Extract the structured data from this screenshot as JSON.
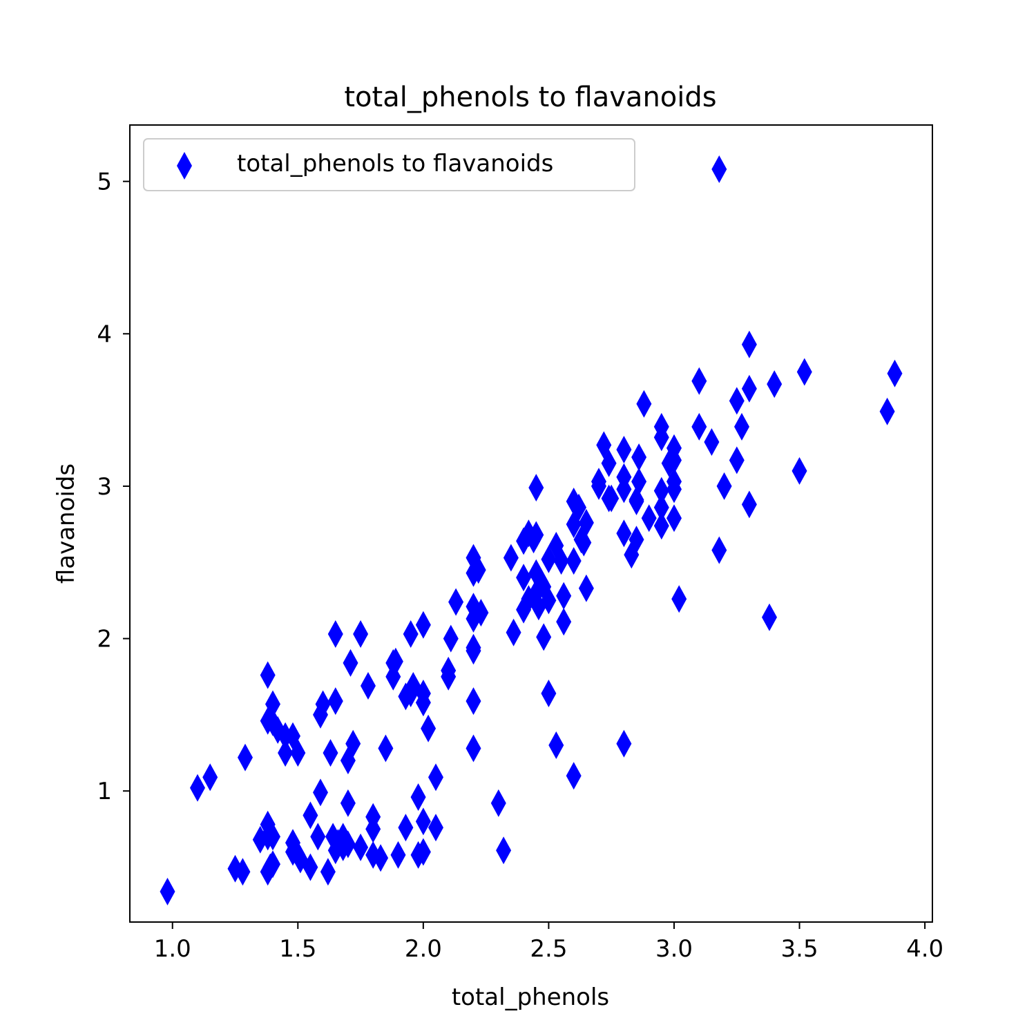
{
  "chart_data": {
    "type": "scatter",
    "title": "total_phenols to flavanoids",
    "xlabel": "total_phenols",
    "ylabel": "flavanoids",
    "xlim": [
      0.83,
      4.03
    ],
    "ylim": [
      0.14,
      5.37
    ],
    "x_ticks": [
      "1.0",
      "1.5",
      "2.0",
      "2.5",
      "3.0",
      "3.5",
      "4.0"
    ],
    "x_tick_values": [
      1.0,
      1.5,
      2.0,
      2.5,
      3.0,
      3.5,
      4.0
    ],
    "y_ticks": [
      "1",
      "2",
      "3",
      "4",
      "5"
    ],
    "y_tick_values": [
      1,
      2,
      3,
      4,
      5
    ],
    "grid": false,
    "legend_position": "top-left",
    "marker": "thin-diamond",
    "color": "#0000ff",
    "series": [
      {
        "name": "total_phenols to flavanoids",
        "points": [
          [
            0.98,
            0.34
          ],
          [
            1.1,
            1.02
          ],
          [
            1.15,
            1.09
          ],
          [
            1.25,
            0.49
          ],
          [
            1.28,
            0.47
          ],
          [
            1.29,
            1.22
          ],
          [
            1.35,
            0.68
          ],
          [
            1.38,
            0.47
          ],
          [
            1.38,
            0.7
          ],
          [
            1.38,
            0.78
          ],
          [
            1.39,
            0.5
          ],
          [
            1.4,
            0.52
          ],
          [
            1.4,
            0.7
          ],
          [
            1.38,
            1.76
          ],
          [
            1.38,
            1.46
          ],
          [
            1.4,
            1.57
          ],
          [
            1.4,
            1.45
          ],
          [
            1.42,
            1.4
          ],
          [
            1.45,
            1.25
          ],
          [
            1.45,
            1.36
          ],
          [
            1.48,
            1.36
          ],
          [
            1.48,
            0.66
          ],
          [
            1.48,
            0.6
          ],
          [
            1.5,
            0.58
          ],
          [
            1.5,
            1.25
          ],
          [
            1.51,
            0.55
          ],
          [
            1.55,
            0.5
          ],
          [
            1.55,
            0.84
          ],
          [
            1.58,
            0.7
          ],
          [
            1.59,
            0.99
          ],
          [
            1.59,
            1.5
          ],
          [
            1.6,
            1.57
          ],
          [
            1.62,
            0.47
          ],
          [
            1.63,
            1.25
          ],
          [
            1.64,
            0.7
          ],
          [
            1.65,
            0.61
          ],
          [
            1.65,
            1.59
          ],
          [
            1.65,
            2.03
          ],
          [
            1.66,
            0.66
          ],
          [
            1.68,
            0.63
          ],
          [
            1.68,
            0.7
          ],
          [
            1.7,
            0.65
          ],
          [
            1.7,
            0.92
          ],
          [
            1.7,
            1.2
          ],
          [
            1.71,
            1.84
          ],
          [
            1.72,
            1.31
          ],
          [
            1.75,
            0.63
          ],
          [
            1.75,
            2.03
          ],
          [
            1.78,
            1.69
          ],
          [
            1.8,
            0.58
          ],
          [
            1.8,
            0.75
          ],
          [
            1.8,
            0.83
          ],
          [
            1.83,
            0.56
          ],
          [
            1.85,
            1.28
          ],
          [
            1.88,
            1.75
          ],
          [
            1.88,
            1.84
          ],
          [
            1.89,
            1.85
          ],
          [
            1.9,
            0.58
          ],
          [
            1.93,
            1.62
          ],
          [
            1.93,
            0.76
          ],
          [
            1.95,
            2.03
          ],
          [
            1.95,
            1.64
          ],
          [
            1.96,
            1.69
          ],
          [
            1.98,
            0.58
          ],
          [
            1.98,
            0.96
          ],
          [
            2.0,
            0.6
          ],
          [
            2.0,
            0.8
          ],
          [
            2.0,
            1.58
          ],
          [
            2.0,
            1.64
          ],
          [
            2.0,
            2.09
          ],
          [
            2.02,
            1.41
          ],
          [
            2.05,
            0.76
          ],
          [
            2.05,
            1.09
          ],
          [
            2.1,
            1.75
          ],
          [
            2.1,
            1.79
          ],
          [
            2.11,
            2.0
          ],
          [
            2.13,
            2.24
          ],
          [
            2.2,
            1.28
          ],
          [
            2.2,
            1.59
          ],
          [
            2.2,
            1.92
          ],
          [
            2.2,
            1.94
          ],
          [
            2.2,
            2.13
          ],
          [
            2.2,
            2.21
          ],
          [
            2.2,
            2.43
          ],
          [
            2.2,
            2.53
          ],
          [
            2.22,
            2.45
          ],
          [
            2.23,
            2.17
          ],
          [
            2.3,
            0.92
          ],
          [
            2.32,
            0.61
          ],
          [
            2.35,
            2.53
          ],
          [
            2.36,
            2.04
          ],
          [
            2.4,
            2.19
          ],
          [
            2.4,
            2.4
          ],
          [
            2.4,
            2.64
          ],
          [
            2.42,
            2.26
          ],
          [
            2.42,
            2.69
          ],
          [
            2.44,
            2.65
          ],
          [
            2.45,
            2.3
          ],
          [
            2.45,
            2.43
          ],
          [
            2.45,
            2.68
          ],
          [
            2.45,
            2.99
          ],
          [
            2.46,
            2.21
          ],
          [
            2.47,
            2.37
          ],
          [
            2.48,
            2.01
          ],
          [
            2.48,
            2.34
          ],
          [
            2.5,
            1.64
          ],
          [
            2.5,
            2.25
          ],
          [
            2.5,
            2.52
          ],
          [
            2.53,
            1.3
          ],
          [
            2.53,
            2.61
          ],
          [
            2.55,
            2.51
          ],
          [
            2.56,
            2.11
          ],
          [
            2.56,
            2.28
          ],
          [
            2.6,
            1.1
          ],
          [
            2.6,
            2.51
          ],
          [
            2.6,
            2.75
          ],
          [
            2.6,
            2.9
          ],
          [
            2.62,
            2.86
          ],
          [
            2.63,
            2.65
          ],
          [
            2.64,
            2.63
          ],
          [
            2.65,
            2.33
          ],
          [
            2.65,
            2.76
          ],
          [
            2.7,
            3.03
          ],
          [
            2.7,
            3.0
          ],
          [
            2.72,
            3.27
          ],
          [
            2.74,
            2.92
          ],
          [
            2.74,
            3.15
          ],
          [
            2.75,
            2.92
          ],
          [
            2.8,
            1.31
          ],
          [
            2.8,
            2.69
          ],
          [
            2.8,
            2.98
          ],
          [
            2.8,
            3.06
          ],
          [
            2.8,
            3.24
          ],
          [
            2.83,
            2.55
          ],
          [
            2.85,
            2.65
          ],
          [
            2.85,
            2.9
          ],
          [
            2.85,
            2.91
          ],
          [
            2.86,
            3.03
          ],
          [
            2.86,
            3.19
          ],
          [
            2.88,
            3.54
          ],
          [
            2.9,
            2.79
          ],
          [
            2.95,
            2.74
          ],
          [
            2.95,
            2.86
          ],
          [
            2.95,
            2.97
          ],
          [
            2.95,
            3.32
          ],
          [
            2.95,
            3.39
          ],
          [
            2.98,
            3.15
          ],
          [
            3.0,
            2.79
          ],
          [
            3.0,
            2.98
          ],
          [
            3.0,
            3.03
          ],
          [
            3.0,
            3.17
          ],
          [
            3.0,
            3.25
          ],
          [
            3.02,
            2.26
          ],
          [
            3.1,
            3.39
          ],
          [
            3.1,
            3.69
          ],
          [
            3.15,
            3.29
          ],
          [
            3.18,
            2.58
          ],
          [
            3.18,
            5.08
          ],
          [
            3.2,
            3.0
          ],
          [
            3.25,
            3.17
          ],
          [
            3.25,
            3.56
          ],
          [
            3.27,
            3.39
          ],
          [
            3.3,
            2.88
          ],
          [
            3.3,
            3.64
          ],
          [
            3.3,
            3.93
          ],
          [
            3.38,
            2.14
          ],
          [
            3.4,
            3.67
          ],
          [
            3.5,
            3.1
          ],
          [
            3.52,
            3.75
          ],
          [
            3.85,
            3.49
          ],
          [
            3.88,
            3.74
          ]
        ]
      }
    ]
  }
}
